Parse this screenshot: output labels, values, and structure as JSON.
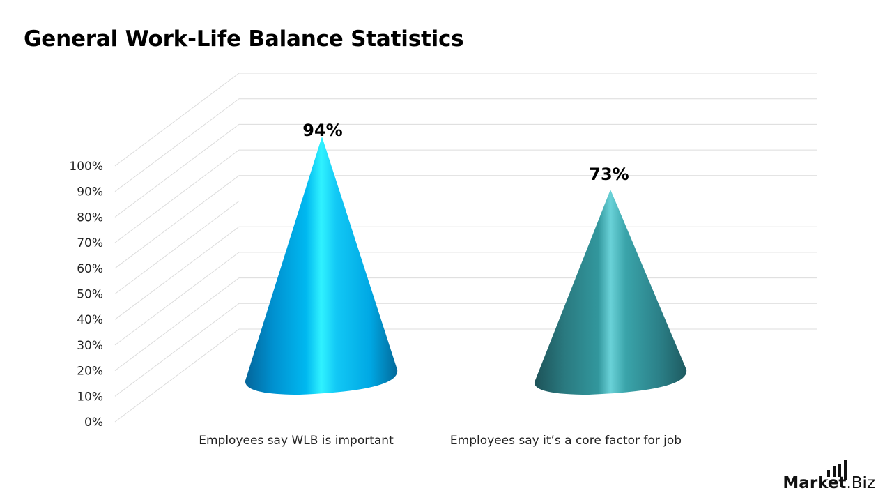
{
  "title": "General Work-Life Balance Statistics",
  "chart_data": {
    "type": "bar",
    "subtype": "3d-cone",
    "title": "General Work-Life Balance Statistics",
    "categories": [
      "Employees say WLB is important",
      "Employees say it’s a core factor for job"
    ],
    "values": [
      94,
      73
    ],
    "data_labels": [
      "94%",
      "73%"
    ],
    "colors": [
      "#00b4f0",
      "#2a8c94"
    ],
    "ylabel": "",
    "xlabel": "",
    "ylim": [
      0,
      100
    ],
    "yticks": [
      "0%",
      "10%",
      "20%",
      "30%",
      "40%",
      "50%",
      "60%",
      "70%",
      "80%",
      "90%",
      "100%"
    ],
    "grid": true,
    "legend": "none"
  },
  "logo": {
    "bold": "Market",
    "regular": ".Biz"
  }
}
